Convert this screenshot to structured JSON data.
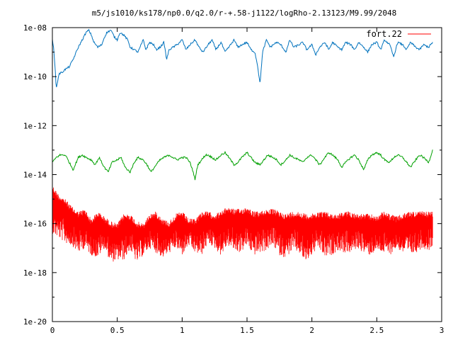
{
  "chart_data": {
    "type": "line",
    "title": "m5/js1010/ks178/np0.0/q2.0/r-+.58-j1122/logRho-2.13123/M9.99/2048",
    "xlabel": "",
    "ylabel": "",
    "xlim": [
      0,
      3
    ],
    "ylim_log10": [
      -20,
      -8
    ],
    "y_scale": "log",
    "grid": false,
    "legend_position": "top-right",
    "x_ticks": [
      0,
      0.5,
      1,
      1.5,
      2,
      2.5,
      3
    ],
    "x_tick_labels": [
      "0",
      "0.5",
      "1",
      "1.5",
      "2",
      "2.5",
      "3"
    ],
    "y_ticks_log10": [
      -8,
      -10,
      -12,
      -14,
      -16,
      -18,
      -20
    ],
    "y_tick_labels": [
      "1e-08",
      "1e-10",
      "1e-12",
      "1e-14",
      "1e-16",
      "1e-18",
      "1e-20"
    ],
    "series": [
      {
        "name": "fort.22",
        "color": "#ff0000",
        "style": "dense-oscillation",
        "x": [
          0.0,
          0.02,
          0.05,
          0.1,
          0.15,
          0.2,
          0.25,
          0.3,
          0.35,
          0.4,
          0.45,
          0.5,
          0.55,
          0.6,
          0.65,
          0.7,
          0.75,
          0.8,
          0.85,
          0.9,
          0.95,
          1.0,
          1.05,
          1.1,
          1.15,
          1.2,
          1.25,
          1.3,
          1.35,
          1.4,
          1.45,
          1.5,
          1.55,
          1.6,
          1.65,
          1.7,
          1.75,
          1.8,
          1.85,
          1.9,
          1.95,
          2.0,
          2.05,
          2.1,
          2.15,
          2.2,
          2.25,
          2.3,
          2.35,
          2.4,
          2.45,
          2.5,
          2.55,
          2.6,
          2.65,
          2.7,
          2.75,
          2.8,
          2.85,
          2.9,
          2.93
        ],
        "y_upper_log10": [
          -14.4,
          -14.6,
          -14.8,
          -15.0,
          -15.3,
          -15.5,
          -15.4,
          -15.8,
          -15.5,
          -15.7,
          -15.9,
          -16.0,
          -15.6,
          -15.6,
          -15.9,
          -16.0,
          -15.6,
          -15.5,
          -15.8,
          -15.9,
          -15.6,
          -15.5,
          -15.8,
          -15.8,
          -15.5,
          -15.5,
          -15.6,
          -15.5,
          -15.3,
          -15.4,
          -15.4,
          -15.3,
          -15.5,
          -15.5,
          -15.4,
          -15.4,
          -15.5,
          -15.6,
          -15.5,
          -15.5,
          -15.6,
          -15.6,
          -15.5,
          -15.5,
          -15.6,
          -15.6,
          -15.5,
          -15.5,
          -15.6,
          -15.6,
          -15.6,
          -15.7,
          -15.5,
          -15.6,
          -15.7,
          -15.6,
          -15.5,
          -15.5,
          -15.5,
          -15.5,
          -15.5
        ],
        "y_lower_log10": [
          -16.4,
          -16.5,
          -16.6,
          -16.8,
          -16.9,
          -17.2,
          -17.0,
          -17.3,
          -17.4,
          -17.0,
          -17.6,
          -17.5,
          -17.5,
          -17.1,
          -17.6,
          -17.3,
          -17.0,
          -17.2,
          -17.4,
          -17.2,
          -17.0,
          -17.3,
          -16.9,
          -17.2,
          -17.3,
          -16.8,
          -17.0,
          -17.3,
          -16.9,
          -17.1,
          -17.2,
          -16.9,
          -17.3,
          -17.2,
          -17.1,
          -16.9,
          -17.3,
          -17.4,
          -17.1,
          -17.2,
          -17.6,
          -17.3,
          -17.0,
          -17.4,
          -17.3,
          -17.1,
          -17.2,
          -17.2,
          -17.0,
          -17.2,
          -17.3,
          -17.1,
          -17.2,
          -17.3,
          -17.0,
          -17.2,
          -17.3,
          -17.2,
          -17.0,
          -17.1,
          -16.9
        ]
      },
      {
        "name": "",
        "color": "#0072bd",
        "style": "line",
        "x": [
          0.0,
          0.01,
          0.02,
          0.03,
          0.05,
          0.08,
          0.1,
          0.13,
          0.16,
          0.2,
          0.23,
          0.26,
          0.28,
          0.3,
          0.32,
          0.35,
          0.38,
          0.4,
          0.42,
          0.45,
          0.48,
          0.5,
          0.52,
          0.55,
          0.58,
          0.6,
          0.63,
          0.66,
          0.7,
          0.72,
          0.75,
          0.78,
          0.8,
          0.83,
          0.86,
          0.88,
          0.9,
          0.93,
          0.96,
          1.0,
          1.03,
          1.06,
          1.1,
          1.13,
          1.16,
          1.2,
          1.23,
          1.26,
          1.3,
          1.33,
          1.36,
          1.4,
          1.43,
          1.46,
          1.5,
          1.53,
          1.56,
          1.58,
          1.6,
          1.62,
          1.65,
          1.68,
          1.7,
          1.73,
          1.76,
          1.8,
          1.83,
          1.86,
          1.9,
          1.93,
          1.96,
          2.0,
          2.03,
          2.06,
          2.1,
          2.13,
          2.16,
          2.2,
          2.23,
          2.26,
          2.3,
          2.33,
          2.36,
          2.4,
          2.43,
          2.46,
          2.5,
          2.53,
          2.56,
          2.6,
          2.63,
          2.66,
          2.7,
          2.73,
          2.76,
          2.8,
          2.83,
          2.86,
          2.9,
          2.93
        ],
        "y_log10": [
          -8.5,
          -8.8,
          -9.6,
          -10.5,
          -9.9,
          -9.8,
          -9.7,
          -9.6,
          -9.3,
          -8.8,
          -8.5,
          -8.2,
          -8.1,
          -8.3,
          -8.6,
          -8.8,
          -8.7,
          -8.4,
          -8.2,
          -8.1,
          -8.4,
          -8.5,
          -8.2,
          -8.3,
          -8.5,
          -8.8,
          -8.9,
          -9.0,
          -8.5,
          -8.9,
          -8.6,
          -8.7,
          -8.9,
          -8.8,
          -8.6,
          -9.3,
          -8.9,
          -8.8,
          -8.7,
          -8.5,
          -8.9,
          -8.7,
          -8.5,
          -8.8,
          -9.0,
          -8.7,
          -8.5,
          -8.9,
          -8.6,
          -9.0,
          -8.8,
          -8.5,
          -8.8,
          -8.7,
          -8.6,
          -8.9,
          -9.0,
          -9.5,
          -10.3,
          -9.0,
          -8.5,
          -8.8,
          -8.7,
          -8.6,
          -8.7,
          -9.0,
          -8.5,
          -8.8,
          -8.7,
          -8.6,
          -8.9,
          -8.7,
          -9.1,
          -8.8,
          -8.6,
          -8.9,
          -8.6,
          -8.8,
          -8.9,
          -8.6,
          -8.7,
          -8.9,
          -8.6,
          -8.8,
          -9.0,
          -8.7,
          -8.6,
          -8.9,
          -8.5,
          -8.7,
          -9.2,
          -8.6,
          -8.7,
          -8.9,
          -8.6,
          -8.8,
          -8.9,
          -8.7,
          -8.8,
          -8.6
        ]
      },
      {
        "name": "",
        "color": "#00a000",
        "style": "line",
        "x": [
          0.0,
          0.03,
          0.06,
          0.1,
          0.13,
          0.16,
          0.2,
          0.23,
          0.26,
          0.3,
          0.33,
          0.36,
          0.4,
          0.43,
          0.46,
          0.5,
          0.53,
          0.56,
          0.6,
          0.63,
          0.66,
          0.7,
          0.73,
          0.76,
          0.8,
          0.83,
          0.86,
          0.9,
          0.93,
          0.96,
          1.0,
          1.03,
          1.06,
          1.08,
          1.1,
          1.12,
          1.15,
          1.18,
          1.2,
          1.23,
          1.26,
          1.3,
          1.33,
          1.36,
          1.4,
          1.43,
          1.46,
          1.5,
          1.53,
          1.56,
          1.6,
          1.63,
          1.66,
          1.7,
          1.73,
          1.76,
          1.8,
          1.83,
          1.86,
          1.9,
          1.93,
          1.96,
          2.0,
          2.03,
          2.06,
          2.1,
          2.13,
          2.16,
          2.2,
          2.23,
          2.26,
          2.3,
          2.33,
          2.36,
          2.4,
          2.43,
          2.46,
          2.5,
          2.53,
          2.56,
          2.6,
          2.63,
          2.66,
          2.7,
          2.73,
          2.76,
          2.8,
          2.83,
          2.86,
          2.9,
          2.93
        ],
        "y_log10": [
          -13.5,
          -13.3,
          -13.2,
          -13.2,
          -13.5,
          -13.8,
          -13.3,
          -13.2,
          -13.3,
          -13.4,
          -13.6,
          -13.3,
          -13.7,
          -13.9,
          -13.5,
          -13.4,
          -13.3,
          -13.7,
          -13.9,
          -13.5,
          -13.3,
          -13.4,
          -13.6,
          -13.9,
          -13.6,
          -13.4,
          -13.3,
          -13.2,
          -13.3,
          -13.4,
          -13.3,
          -13.3,
          -13.5,
          -13.8,
          -14.2,
          -13.6,
          -13.4,
          -13.2,
          -13.2,
          -13.3,
          -13.4,
          -13.2,
          -13.1,
          -13.3,
          -13.6,
          -13.5,
          -13.3,
          -13.1,
          -13.3,
          -13.5,
          -13.6,
          -13.4,
          -13.2,
          -13.3,
          -13.4,
          -13.6,
          -13.4,
          -13.2,
          -13.3,
          -13.4,
          -13.5,
          -13.3,
          -13.2,
          -13.4,
          -13.6,
          -13.3,
          -13.1,
          -13.2,
          -13.4,
          -13.7,
          -13.5,
          -13.3,
          -13.2,
          -13.4,
          -13.8,
          -13.4,
          -13.2,
          -13.1,
          -13.2,
          -13.4,
          -13.5,
          -13.3,
          -13.2,
          -13.3,
          -13.5,
          -13.7,
          -13.4,
          -13.2,
          -13.3,
          -13.5,
          -13.0
        ]
      }
    ]
  }
}
